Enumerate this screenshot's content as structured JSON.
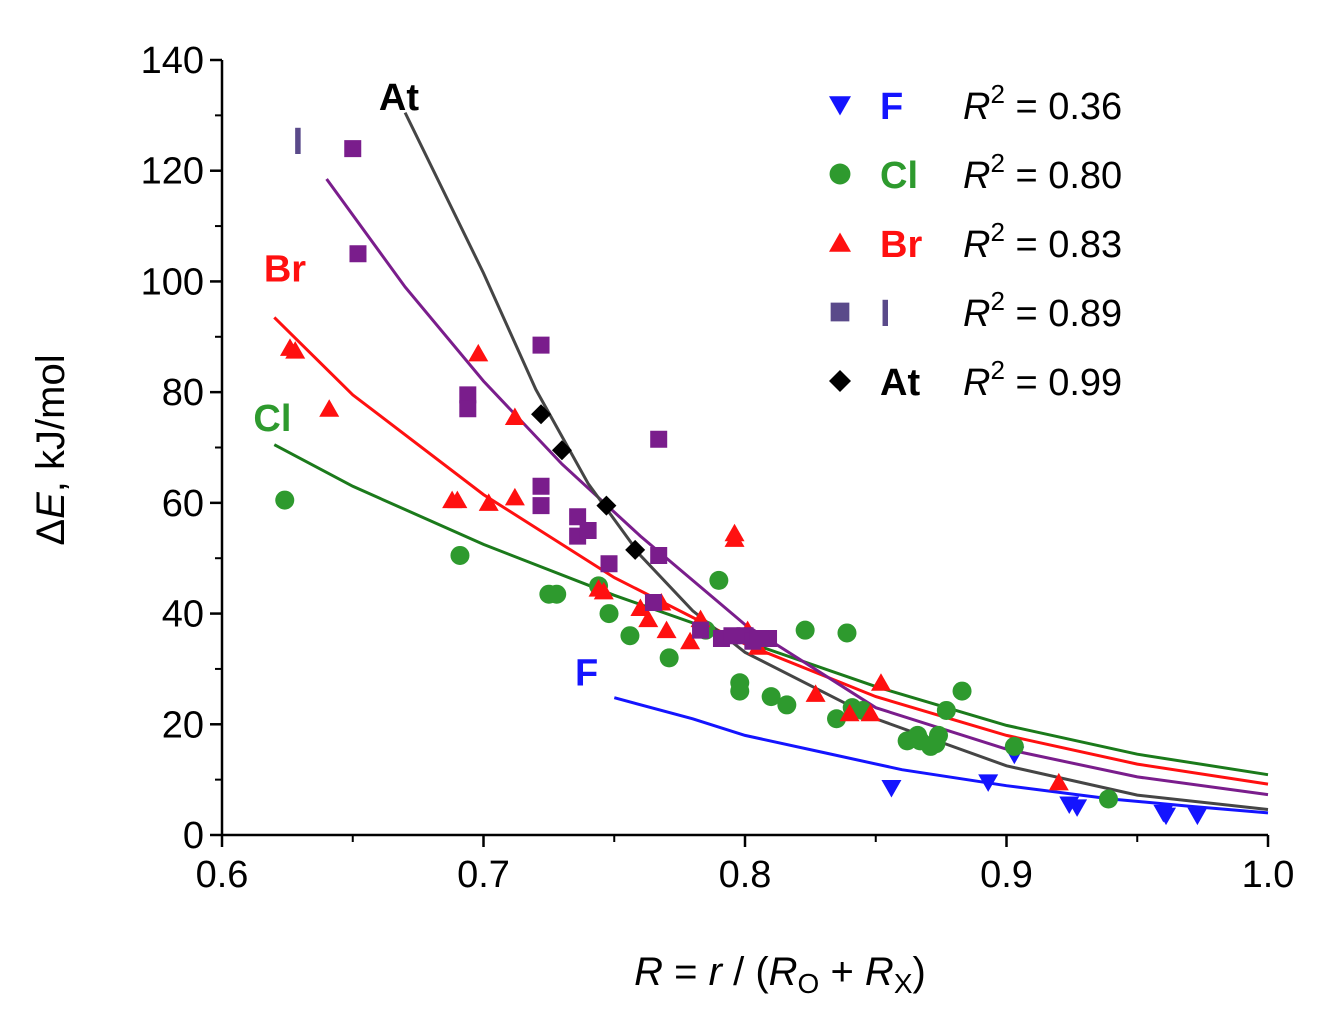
{
  "chart_data": {
    "type": "scatter",
    "xlabel": {
      "var": "R",
      "eq": " = ",
      "lhs": "r",
      "slash": " / (",
      "ro": "R",
      "ro_sub": "O",
      "plus": " + ",
      "rx": "R",
      "rx_sub": "X",
      "close": ")"
    },
    "ylabel": {
      "delta": "Δ",
      "var": "E",
      "unit": ", kJ/mol"
    },
    "xlim": [
      0.6,
      1.0
    ],
    "ylim": [
      0,
      140
    ],
    "xticks": [
      0.6,
      0.7,
      0.8,
      0.9,
      1.0
    ],
    "xtick_labels": [
      "0.6",
      "0.7",
      "0.8",
      "0.9",
      "1.0"
    ],
    "yticks": [
      0,
      20,
      40,
      60,
      80,
      100,
      120,
      140
    ],
    "ytick_labels": [
      "0",
      "20",
      "40",
      "60",
      "80",
      "100",
      "120",
      "140"
    ],
    "legend_position": "top-right",
    "series": [
      {
        "name": "F",
        "color": "#1414ff",
        "marker": "triangle-down",
        "r2_label": "R",
        "r2_sup": "2",
        "r2_value": " = 0.36",
        "label_at": [
          0.735,
          27
        ],
        "fit": [
          [
            0.75,
            24.8
          ],
          [
            0.78,
            21.0
          ],
          [
            0.8,
            18.0
          ],
          [
            0.83,
            14.9
          ],
          [
            0.86,
            11.8
          ],
          [
            0.9,
            8.9
          ],
          [
            0.94,
            6.5
          ],
          [
            0.97,
            5.2
          ],
          [
            1.0,
            4.0
          ]
        ],
        "points": [
          [
            0.856,
            8.5
          ],
          [
            0.893,
            9.5
          ],
          [
            0.903,
            14.5
          ],
          [
            0.924,
            5.5
          ],
          [
            0.927,
            5.0
          ],
          [
            0.96,
            4.0
          ],
          [
            0.961,
            3.5
          ],
          [
            0.973,
            3.5
          ]
        ]
      },
      {
        "name": "Cl",
        "color": "#2e9a2e",
        "line_color": "#1b7a1b",
        "marker": "circle",
        "r2_label": "R",
        "r2_sup": "2",
        "r2_value": " = 0.80",
        "label_at": [
          0.612,
          73
        ],
        "fit": [
          [
            0.62,
            70.5
          ],
          [
            0.65,
            63.0
          ],
          [
            0.7,
            52.5
          ],
          [
            0.75,
            43.3
          ],
          [
            0.8,
            35.0
          ],
          [
            0.85,
            26.8
          ],
          [
            0.9,
            19.8
          ],
          [
            0.95,
            14.6
          ],
          [
            1.0,
            10.9
          ]
        ],
        "points": [
          [
            0.624,
            60.5
          ],
          [
            0.691,
            50.5
          ],
          [
            0.725,
            43.5
          ],
          [
            0.728,
            43.5
          ],
          [
            0.744,
            45.0
          ],
          [
            0.748,
            40.0
          ],
          [
            0.756,
            36.0
          ],
          [
            0.771,
            32.0
          ],
          [
            0.785,
            37.0
          ],
          [
            0.79,
            46.0
          ],
          [
            0.798,
            27.5
          ],
          [
            0.798,
            26.0
          ],
          [
            0.81,
            25.0
          ],
          [
            0.816,
            23.5
          ],
          [
            0.823,
            37.0
          ],
          [
            0.835,
            21.0
          ],
          [
            0.839,
            36.5
          ],
          [
            0.841,
            23.0
          ],
          [
            0.845,
            22.5
          ],
          [
            0.862,
            17.0
          ],
          [
            0.866,
            18.0
          ],
          [
            0.867,
            17.0
          ],
          [
            0.871,
            16.0
          ],
          [
            0.873,
            16.5
          ],
          [
            0.874,
            18.0
          ],
          [
            0.877,
            22.5
          ],
          [
            0.883,
            26.0
          ],
          [
            0.903,
            16.0
          ],
          [
            0.939,
            6.5
          ]
        ]
      },
      {
        "name": "Br",
        "color": "#ff1010",
        "marker": "triangle-up",
        "r2_label": "R",
        "r2_sup": "2",
        "r2_value": " = 0.83",
        "label_at": [
          0.616,
          100
        ],
        "fit": [
          [
            0.62,
            93.5
          ],
          [
            0.65,
            79.5
          ],
          [
            0.7,
            61.5
          ],
          [
            0.75,
            46.5
          ],
          [
            0.8,
            34.5
          ],
          [
            0.85,
            25.0
          ],
          [
            0.9,
            18.0
          ],
          [
            0.95,
            12.8
          ],
          [
            1.0,
            9.2
          ]
        ],
        "points": [
          [
            0.626,
            88.0
          ],
          [
            0.628,
            87.5
          ],
          [
            0.641,
            77.0
          ],
          [
            0.688,
            60.5
          ],
          [
            0.69,
            60.5
          ],
          [
            0.698,
            87.0
          ],
          [
            0.702,
            60.0
          ],
          [
            0.712,
            75.5
          ],
          [
            0.712,
            61.0
          ],
          [
            0.744,
            44.5
          ],
          [
            0.746,
            44.0
          ],
          [
            0.76,
            41.0
          ],
          [
            0.763,
            39.0
          ],
          [
            0.768,
            42.0
          ],
          [
            0.77,
            37.0
          ],
          [
            0.779,
            35.0
          ],
          [
            0.783,
            39.0
          ],
          [
            0.796,
            54.5
          ],
          [
            0.796,
            53.5
          ],
          [
            0.801,
            37.0
          ],
          [
            0.805,
            34.0
          ],
          [
            0.827,
            25.5
          ],
          [
            0.84,
            22.0
          ],
          [
            0.848,
            22.0
          ],
          [
            0.852,
            27.5
          ],
          [
            0.92,
            9.5
          ]
        ]
      },
      {
        "name": "I",
        "color": "#7a1d8c",
        "line_color": "#7a1d8c",
        "legend_color": "#5a4a8a",
        "label_color": "#5a4a8a",
        "marker": "square",
        "r2_label": "R",
        "r2_sup": "2",
        "r2_value": " = 0.89",
        "label_at": [
          0.627,
          123
        ],
        "fit": [
          [
            0.64,
            118.5
          ],
          [
            0.67,
            99.0
          ],
          [
            0.7,
            82.0
          ],
          [
            0.73,
            67.0
          ],
          [
            0.76,
            54.0
          ],
          [
            0.79,
            42.0
          ],
          [
            0.8,
            38.0
          ],
          [
            0.85,
            23.0
          ],
          [
            0.9,
            15.5
          ],
          [
            0.95,
            10.5
          ],
          [
            1.0,
            7.3
          ]
        ],
        "points": [
          [
            0.65,
            124.0
          ],
          [
            0.652,
            105.0
          ],
          [
            0.694,
            79.5
          ],
          [
            0.694,
            77.0
          ],
          [
            0.722,
            88.5
          ],
          [
            0.722,
            63.0
          ],
          [
            0.722,
            59.5
          ],
          [
            0.736,
            57.5
          ],
          [
            0.736,
            54.0
          ],
          [
            0.74,
            55.0
          ],
          [
            0.748,
            49.0
          ],
          [
            0.765,
            42.0
          ],
          [
            0.767,
            71.5
          ],
          [
            0.767,
            50.5
          ],
          [
            0.783,
            37.0
          ],
          [
            0.791,
            35.5
          ],
          [
            0.795,
            36.0
          ],
          [
            0.8,
            36.0
          ],
          [
            0.803,
            35.0
          ],
          [
            0.805,
            35.5
          ],
          [
            0.809,
            35.5
          ]
        ]
      },
      {
        "name": "At",
        "color": "#000000",
        "line_color": "#454545",
        "marker": "diamond",
        "r2_label": "R",
        "r2_sup": "2",
        "r2_value": " = 0.99",
        "label_at": [
          0.66,
          131
        ],
        "fit": [
          [
            0.67,
            130.5
          ],
          [
            0.7,
            101.5
          ],
          [
            0.72,
            80.5
          ],
          [
            0.74,
            63.5
          ],
          [
            0.76,
            50.5
          ],
          [
            0.78,
            40.5
          ],
          [
            0.8,
            33.0
          ],
          [
            0.85,
            21.0
          ],
          [
            0.9,
            12.5
          ],
          [
            0.95,
            7.2
          ],
          [
            1.0,
            4.6
          ]
        ],
        "points": [
          [
            0.722,
            76.0
          ],
          [
            0.73,
            69.5
          ],
          [
            0.747,
            59.5
          ],
          [
            0.758,
            51.5
          ]
        ]
      }
    ]
  }
}
